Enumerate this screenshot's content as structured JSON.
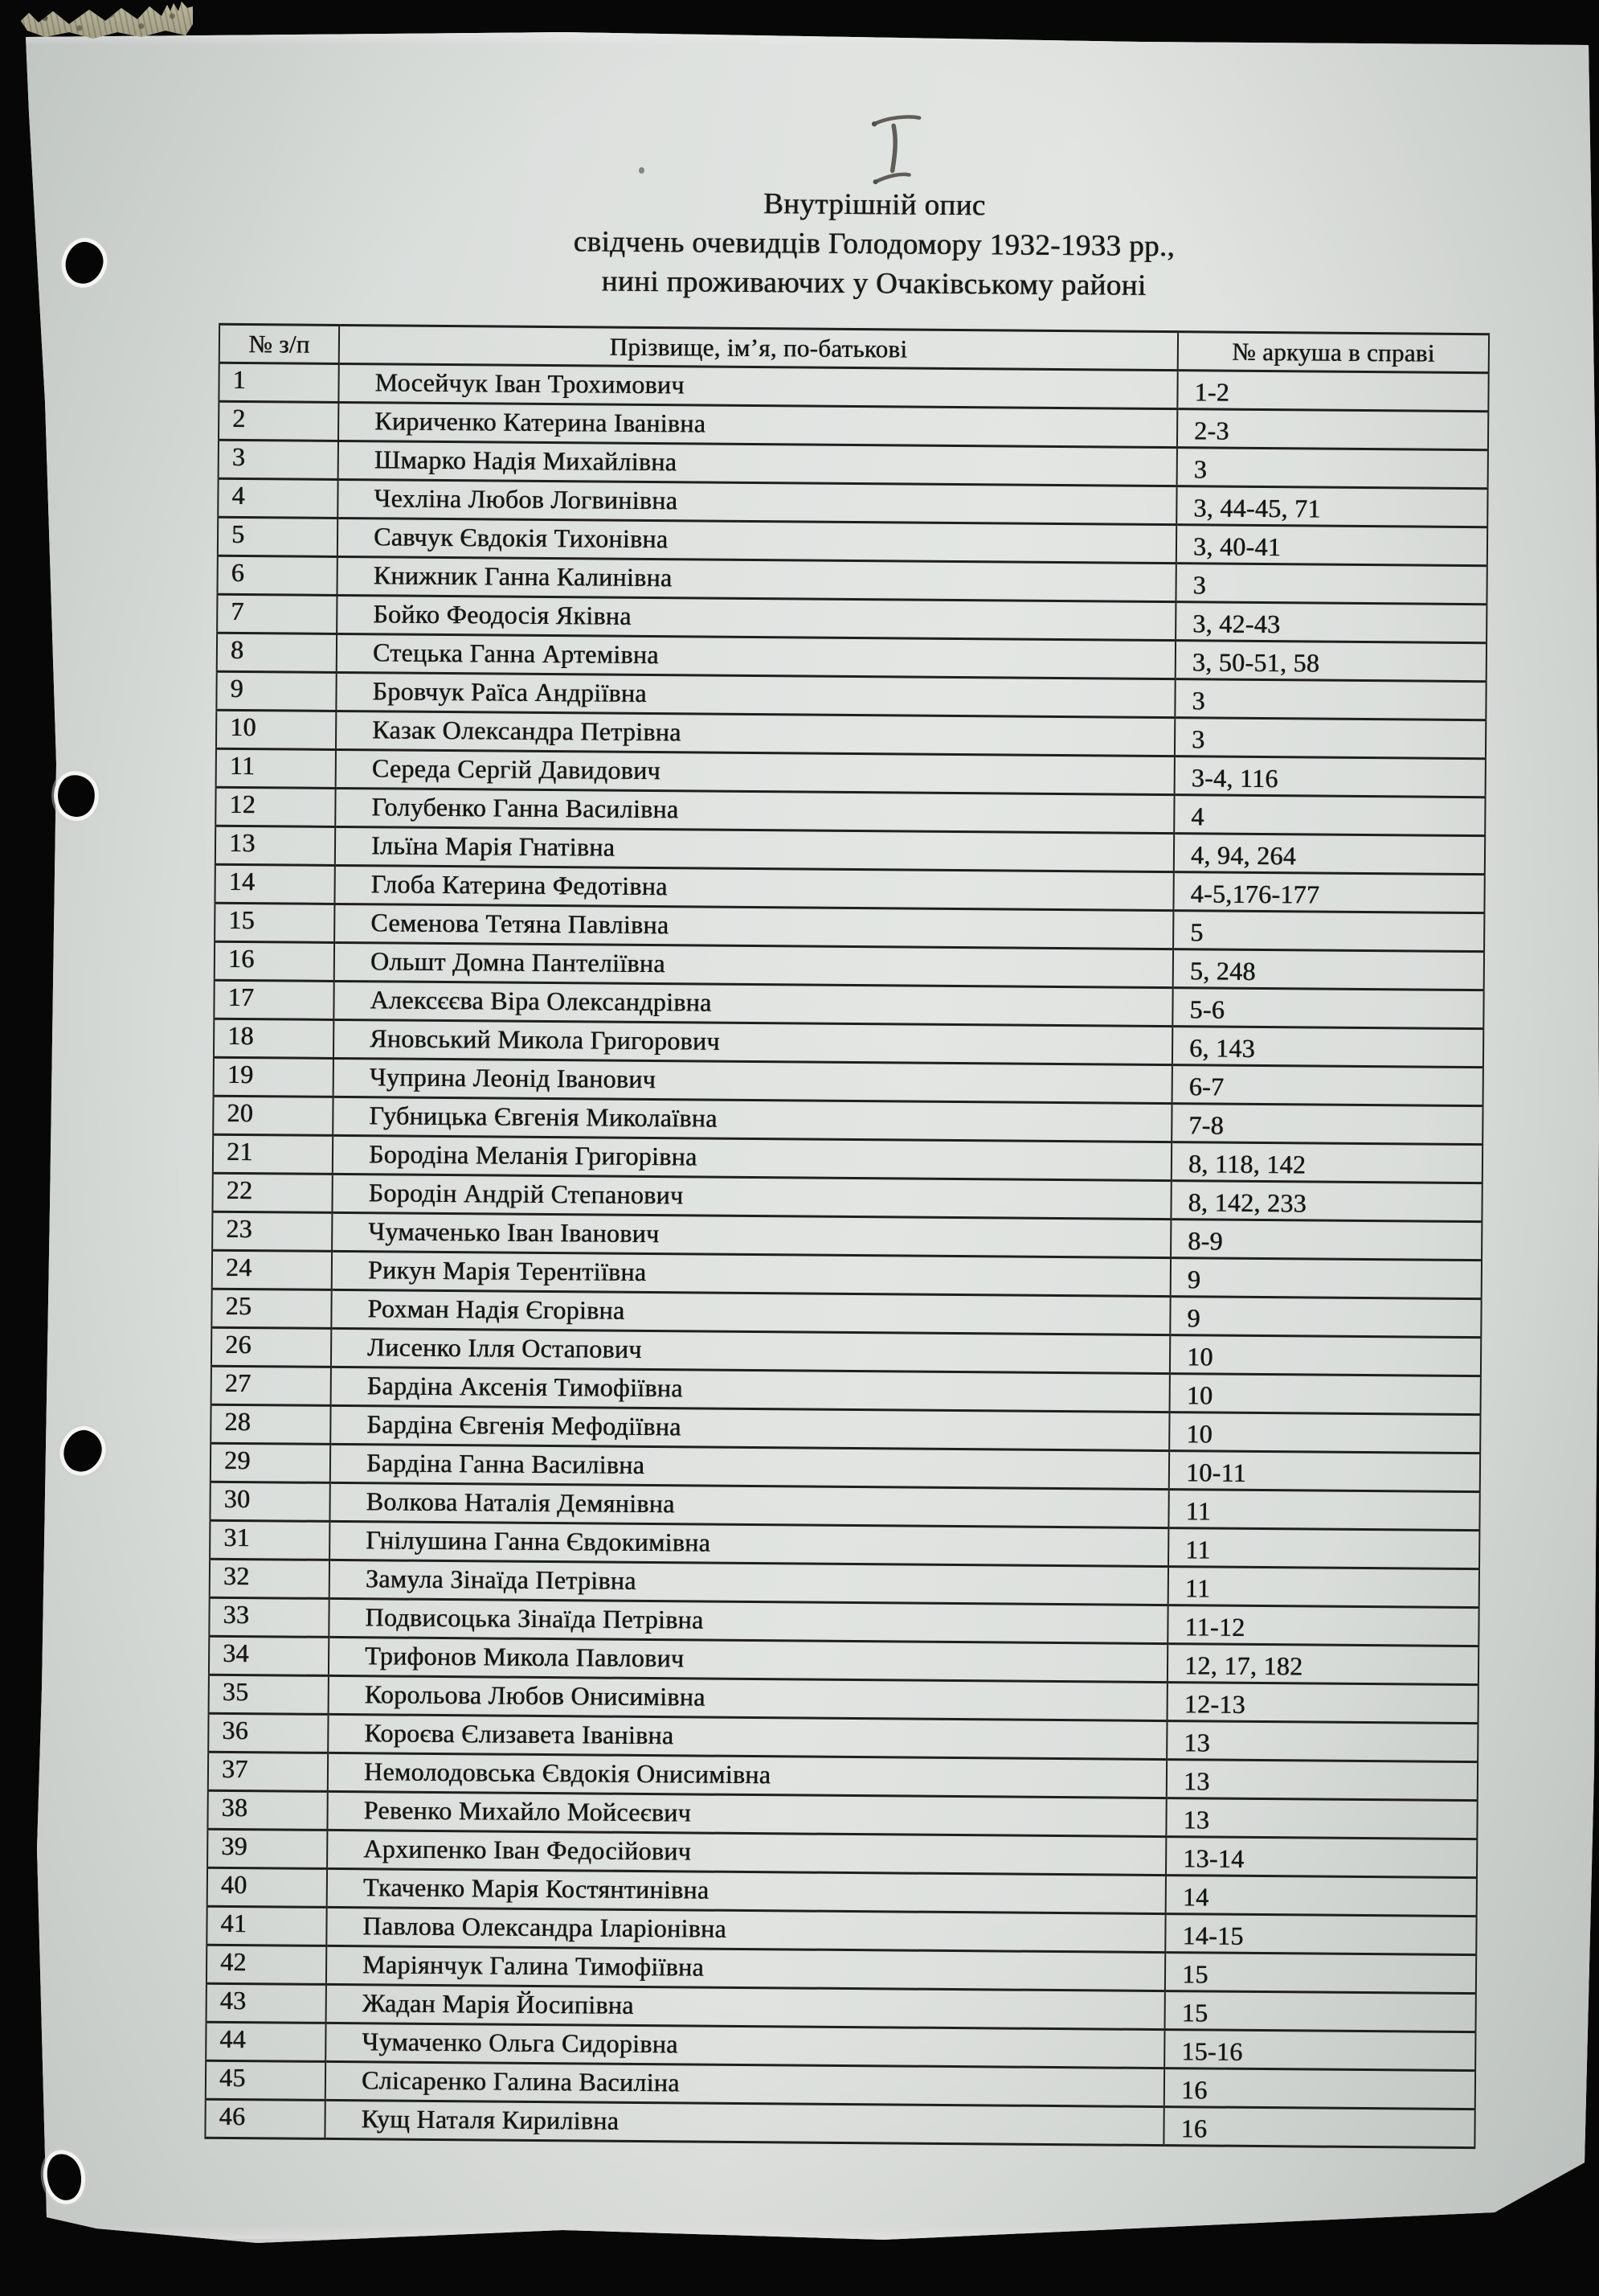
{
  "colors": {
    "bg": "#070707",
    "paper": "#dce0dd",
    "ink": "#1b1b1b",
    "line": "#1f1f1f",
    "pencil": "#4e4b44",
    "tape": "#aeaa91",
    "halo": "#f6f4f1"
  },
  "document": {
    "handwritten_mark": "I",
    "title_lines": {
      "line1": "Внутрішній опис",
      "line2": "свідчень очевидців Голодомору 1932-1933 рр.,",
      "line3": "нині проживаючих у Очаківському районі"
    }
  },
  "table": {
    "col_headers": {
      "num": "№ з/п",
      "name": "Прізвище, ім’я, по-батькові",
      "pages": "№ аркуша в справі"
    },
    "rows": [
      [
        "1",
        "Мосейчук Іван Трохимович",
        "1-2"
      ],
      [
        "2",
        "Кириченко Катерина Іванівна",
        "2-3"
      ],
      [
        "3",
        "Шмарко Надія Михайлівна",
        "3"
      ],
      [
        "4",
        "Чехліна Любов Логвинівна",
        "3, 44-45, 71"
      ],
      [
        "5",
        "Савчук Євдокія Тихонівна",
        "3, 40-41"
      ],
      [
        "6",
        "Книжник Ганна Калинівна",
        "3"
      ],
      [
        "7",
        "Бойко Феодосія Яківна",
        "3, 42-43"
      ],
      [
        "8",
        "Стецька Ганна Артемівна",
        "3, 50-51, 58"
      ],
      [
        "9",
        "Бровчук Раїса Андріївна",
        "3"
      ],
      [
        "10",
        "Казак Олександра Петрівна",
        "3"
      ],
      [
        "11",
        "Середа Сергій Давидович",
        "3-4, 116"
      ],
      [
        "12",
        "Голубенко Ганна Василівна",
        "4"
      ],
      [
        "13",
        "Ільїна Марія Гнатівна",
        "4, 94, 264"
      ],
      [
        "14",
        "Глоба Катерина Федотівна",
        "4-5,176-177"
      ],
      [
        "15",
        "Семенова Тетяна Павлівна",
        "5"
      ],
      [
        "16",
        "Ольшт Домна Пантеліївна",
        "5, 248"
      ],
      [
        "17",
        "Алексєєва Віра Олександрівна",
        "5-6"
      ],
      [
        "18",
        "Яновський Микола Григорович",
        "6, 143"
      ],
      [
        "19",
        "Чуприна Леонід Іванович",
        "6-7"
      ],
      [
        "20",
        "Губницька Євгенія Миколаївна",
        "7-8"
      ],
      [
        "21",
        "Бородіна Меланія Григорівна",
        "8, 118, 142"
      ],
      [
        "22",
        "Бородін Андрій Степанович",
        "8, 142, 233"
      ],
      [
        "23",
        "Чумаченько Іван Іванович",
        "8-9"
      ],
      [
        "24",
        "Рикун Марія Терентіївна",
        "9"
      ],
      [
        "25",
        "Рохман Надія Єгорівна",
        "9"
      ],
      [
        "26",
        "Лисенко Ілля Остапович",
        "10"
      ],
      [
        "27",
        "Бардіна Аксенія Тимофіївна",
        "10"
      ],
      [
        "28",
        "Бардіна Євгенія Мефодіївна",
        "10"
      ],
      [
        "29",
        "Бардіна Ганна Василівна",
        "10-11"
      ],
      [
        "30",
        "Волкова Наталія Демянівна",
        "11"
      ],
      [
        "31",
        "Гнілушина Ганна Євдокимівна",
        "11"
      ],
      [
        "32",
        "Замула Зінаїда Петрівна",
        "11"
      ],
      [
        "33",
        "Подвисоцька Зінаїда Петрівна",
        "11-12"
      ],
      [
        "34",
        "Трифонов Микола Павлович",
        "12, 17, 182"
      ],
      [
        "35",
        "Корольова Любов Онисимівна",
        "12-13"
      ],
      [
        "36",
        "Короєва Єлизавета Іванівна",
        "13"
      ],
      [
        "37",
        "Немолодовська Євдокія Онисимівна",
        "13"
      ],
      [
        "38",
        "Ревенко Михайло Мойсеєвич",
        "13"
      ],
      [
        "39",
        "Архипенко Іван Федосійович",
        "13-14"
      ],
      [
        "40",
        "Ткаченко Марія Костянтинівна",
        "14"
      ],
      [
        "41",
        "Павлова Олександра Іларіонівна",
        "14-15"
      ],
      [
        "42",
        "Маріянчук Галина Тимофіївна",
        "15"
      ],
      [
        "43",
        "Жадан Марія Йосипівна",
        "15"
      ],
      [
        "44",
        "Чумаченко Ольга Сидорівна",
        "15-16"
      ],
      [
        "45",
        "Слісаренко Галина Василіна",
        "16"
      ],
      [
        "46",
        "Кущ Наталя Кирилівна",
        "16"
      ]
    ]
  }
}
